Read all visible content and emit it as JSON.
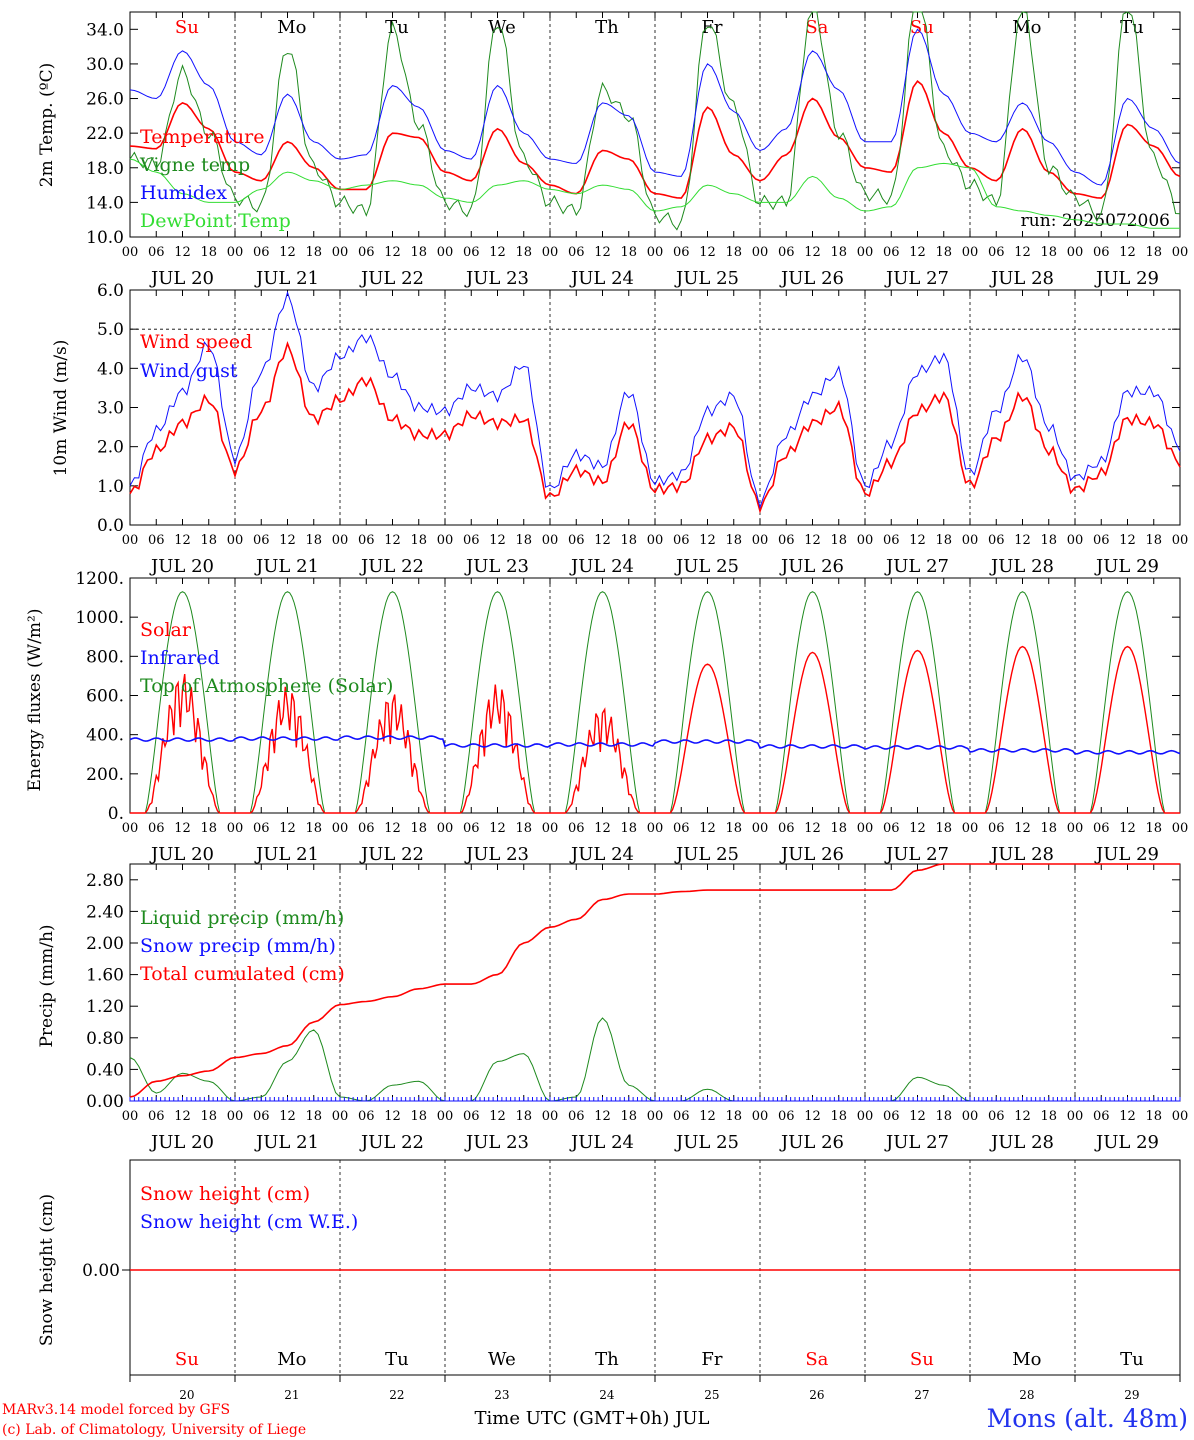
{
  "colors": {
    "red": "#ff0000",
    "darkgreen": "#1e8a1e",
    "blue": "#1010ff",
    "lightgreen": "#33dd33",
    "axis": "#000000",
    "day_weekend": "#ff0000"
  },
  "x_axis": {
    "hour_ticks": [
      "00",
      "06",
      "12",
      "18"
    ],
    "dates": [
      "JUL 20",
      "JUL 21",
      "JUL 22",
      "JUL 23",
      "JUL 24",
      "JUL 25",
      "JUL 26",
      "JUL 27",
      "JUL 28",
      "JUL 29"
    ],
    "weekdays": [
      "Su",
      "Mo",
      "Tu",
      "We",
      "Th",
      "Fr",
      "Sa",
      "Su",
      "Mo",
      "Tu"
    ],
    "weekend_flags": [
      true,
      false,
      false,
      false,
      false,
      false,
      true,
      true,
      false,
      false
    ],
    "day_numbers": [
      "20",
      "21",
      "22",
      "23",
      "24",
      "25",
      "26",
      "27",
      "28",
      "29"
    ],
    "bottom_title": "Time UTC (GMT+0h) JUL"
  },
  "footer": {
    "credit1": "MARv3.14 model forced by GFS",
    "credit2": "(c) Lab. of Climatology, University of Liege",
    "station": "Mons (alt. 48m)"
  },
  "chart_data": [
    {
      "type": "line",
      "ylabel": "2m Temp. (ºC)",
      "ylim": [
        10,
        36
      ],
      "yticks": [
        "10.0",
        "14.0",
        "18.0",
        "22.0",
        "26.0",
        "30.0",
        "34.0"
      ],
      "annotation": "run: 2025072006",
      "x": [
        0,
        6,
        12,
        18,
        24,
        30,
        36,
        42,
        48,
        54,
        60,
        66,
        72,
        78,
        84,
        90,
        96,
        102,
        108,
        114,
        120,
        126,
        132,
        138,
        144,
        150,
        156,
        162,
        168,
        174,
        180,
        186,
        192,
        198,
        204,
        210,
        216,
        222,
        228,
        234,
        240
      ],
      "series": [
        {
          "name": "Temperature",
          "color": "red",
          "values": [
            20.5,
            20.2,
            25.5,
            22.5,
            17.5,
            16.5,
            21.0,
            18.0,
            15.5,
            15.5,
            22.0,
            21.5,
            17.5,
            16.5,
            22.5,
            18.5,
            16.0,
            15.0,
            20.0,
            19.0,
            15.0,
            14.5,
            25.0,
            19.5,
            16.5,
            19.5,
            26.0,
            21.5,
            18.0,
            17.5,
            28.0,
            22.0,
            18.0,
            16.5,
            22.5,
            17.5,
            15.0,
            14.5,
            23.0,
            20.5,
            17.0
          ]
        },
        {
          "name": "Vigne temp",
          "color": "darkgreen",
          "values": [
            19.0,
            18.5,
            29.0,
            22.0,
            14.5,
            13.5,
            32.0,
            18.0,
            14.0,
            13.0,
            34.0,
            23.0,
            14.0,
            13.0,
            35.0,
            19.0,
            14.0,
            13.0,
            27.0,
            24.0,
            12.5,
            11.5,
            35.0,
            25.0,
            14.0,
            14.0,
            37.0,
            22.0,
            15.0,
            14.5,
            38.0,
            20.0,
            16.0,
            14.0,
            37.0,
            18.0,
            14.5,
            12.5,
            37.0,
            19.0,
            13.0
          ]
        },
        {
          "name": "Humidex",
          "color": "blue",
          "values": [
            27.0,
            26.0,
            31.5,
            27.5,
            21.0,
            19.5,
            26.5,
            21.0,
            19.0,
            19.5,
            27.5,
            25.0,
            20.0,
            19.0,
            27.5,
            22.0,
            19.0,
            18.5,
            25.5,
            24.0,
            17.5,
            17.0,
            30.0,
            24.5,
            20.0,
            22.5,
            31.5,
            27.0,
            21.0,
            21.0,
            34.0,
            26.5,
            22.0,
            21.0,
            25.5,
            21.0,
            17.5,
            16.0,
            26.0,
            22.5,
            18.5
          ]
        },
        {
          "name": "DewPoint Temp",
          "color": "lightgreen",
          "values": [
            19.0,
            17.5,
            15.0,
            14.0,
            14.0,
            15.5,
            17.5,
            16.5,
            15.5,
            16.0,
            16.5,
            16.0,
            14.5,
            14.0,
            16.0,
            16.5,
            15.5,
            15.0,
            16.0,
            15.5,
            13.0,
            13.5,
            16.0,
            15.0,
            14.0,
            14.0,
            17.0,
            14.5,
            13.0,
            13.5,
            18.0,
            18.5,
            18.0,
            13.5,
            13.0,
            12.5,
            12.0,
            11.5,
            11.5,
            11.0,
            11.0
          ]
        }
      ]
    },
    {
      "type": "line",
      "ylabel": "10m Wind (m/s)",
      "ylim": [
        0,
        6
      ],
      "yticks": [
        "0.0",
        "1.0",
        "2.0",
        "3.0",
        "4.0",
        "5.0",
        "6.0"
      ],
      "reference_line": 5.0,
      "x": [
        0,
        6,
        12,
        18,
        24,
        30,
        36,
        42,
        48,
        54,
        60,
        66,
        72,
        78,
        84,
        90,
        96,
        102,
        108,
        114,
        120,
        126,
        132,
        138,
        144,
        150,
        156,
        162,
        168,
        174,
        180,
        186,
        192,
        198,
        204,
        210,
        216,
        222,
        228,
        234,
        240
      ],
      "series": [
        {
          "name": "Wind speed",
          "color": "red",
          "values": [
            0.8,
            1.9,
            2.6,
            3.2,
            1.4,
            2.9,
            4.5,
            2.7,
            3.2,
            3.7,
            2.7,
            2.3,
            2.3,
            2.8,
            2.6,
            2.7,
            0.7,
            1.4,
            1.1,
            2.6,
            0.9,
            1.0,
            2.2,
            2.5,
            0.5,
            1.8,
            2.6,
            3.0,
            0.8,
            1.6,
            2.9,
            3.3,
            1.0,
            2.2,
            3.3,
            1.9,
            0.9,
            1.3,
            2.7,
            2.6,
            1.6
          ]
        },
        {
          "name": "Wind gust",
          "color": "blue",
          "values": [
            1.0,
            2.4,
            3.4,
            4.6,
            1.7,
            3.9,
            5.8,
            3.5,
            4.3,
            4.8,
            3.8,
            3.0,
            2.9,
            3.5,
            3.3,
            4.1,
            0.9,
            1.8,
            1.5,
            3.4,
            1.1,
            1.3,
            2.9,
            3.3,
            0.6,
            2.3,
            3.3,
            3.9,
            1.0,
            2.1,
            3.9,
            4.3,
            1.3,
            2.9,
            4.3,
            2.5,
            1.2,
            1.6,
            3.4,
            3.4,
            2.0
          ]
        }
      ]
    },
    {
      "type": "line",
      "ylabel": "Energy fluxes (W/m²)",
      "ylim": [
        0,
        1200
      ],
      "yticks": [
        "0.",
        "200.",
        "400.",
        "600.",
        "800.",
        "1000.",
        "1200."
      ],
      "solar_peaks": [
        720,
        650,
        620,
        660,
        550,
        760,
        820,
        830,
        850,
        850
      ],
      "toa_peak": 1130,
      "infrared_base": [
        375,
        380,
        385,
        345,
        350,
        365,
        340,
        335,
        320,
        310
      ],
      "series": [
        {
          "name": "Solar",
          "color": "red"
        },
        {
          "name": "Infrared",
          "color": "blue"
        },
        {
          "name": "Top of Atmosphere (Solar)",
          "color": "darkgreen"
        }
      ]
    },
    {
      "type": "line",
      "ylabel": "Precip (mm/h)",
      "ylim": [
        0,
        3.0
      ],
      "yticks": [
        "0.00",
        "0.40",
        "0.80",
        "1.20",
        "1.60",
        "2.00",
        "2.40",
        "2.80"
      ],
      "x": [
        0,
        6,
        12,
        18,
        24,
        30,
        36,
        42,
        48,
        54,
        60,
        66,
        72,
        78,
        84,
        90,
        96,
        102,
        108,
        114,
        120,
        126,
        132,
        138,
        144,
        150,
        156,
        162,
        168,
        174,
        180,
        186,
        192,
        198,
        204,
        210,
        216,
        222,
        228,
        234,
        240
      ],
      "series": [
        {
          "name": "Liquid precip (mm/h)",
          "color": "darkgreen",
          "values": [
            0.55,
            0.1,
            0.35,
            0.25,
            0.0,
            0.05,
            0.5,
            0.9,
            0.05,
            0.0,
            0.2,
            0.25,
            0.0,
            0.0,
            0.5,
            0.6,
            0.0,
            0.05,
            1.05,
            0.2,
            0.0,
            0.0,
            0.15,
            0.0,
            0.0,
            0.0,
            0.0,
            0.0,
            0.0,
            0.0,
            0.3,
            0.2,
            0.0,
            0.0,
            0.0,
            0.0,
            0.0,
            0.0,
            0.0,
            0.0,
            0.0
          ]
        },
        {
          "name": "Snow precip (mm/h)",
          "color": "blue",
          "values": [
            0,
            0,
            0,
            0,
            0,
            0,
            0,
            0,
            0,
            0,
            0,
            0,
            0,
            0,
            0,
            0,
            0,
            0,
            0,
            0,
            0,
            0,
            0,
            0,
            0,
            0,
            0,
            0,
            0,
            0,
            0,
            0,
            0,
            0,
            0,
            0,
            0,
            0,
            0,
            0,
            0
          ]
        },
        {
          "name": "Total cumulated (cm)",
          "color": "red",
          "values": [
            0.05,
            0.25,
            0.32,
            0.38,
            0.55,
            0.6,
            0.7,
            1.0,
            1.22,
            1.26,
            1.32,
            1.42,
            1.48,
            1.48,
            1.6,
            2.0,
            2.2,
            2.3,
            2.55,
            2.62,
            2.62,
            2.65,
            2.67,
            2.67,
            2.67,
            2.67,
            2.67,
            2.67,
            2.67,
            2.67,
            2.92,
            3.0,
            3.0,
            3.0,
            3.0,
            3.0,
            3.0,
            3.0,
            3.0,
            3.0,
            3.0
          ]
        }
      ]
    },
    {
      "type": "line",
      "ylabel": "Snow height (cm)",
      "yticks": [
        "0.00"
      ],
      "series": [
        {
          "name": "Snow height (cm)",
          "color": "red",
          "values": [
            0,
            0
          ]
        },
        {
          "name": "Snow height (cm W.E.)",
          "color": "blue",
          "values": [
            0,
            0
          ]
        }
      ]
    }
  ]
}
